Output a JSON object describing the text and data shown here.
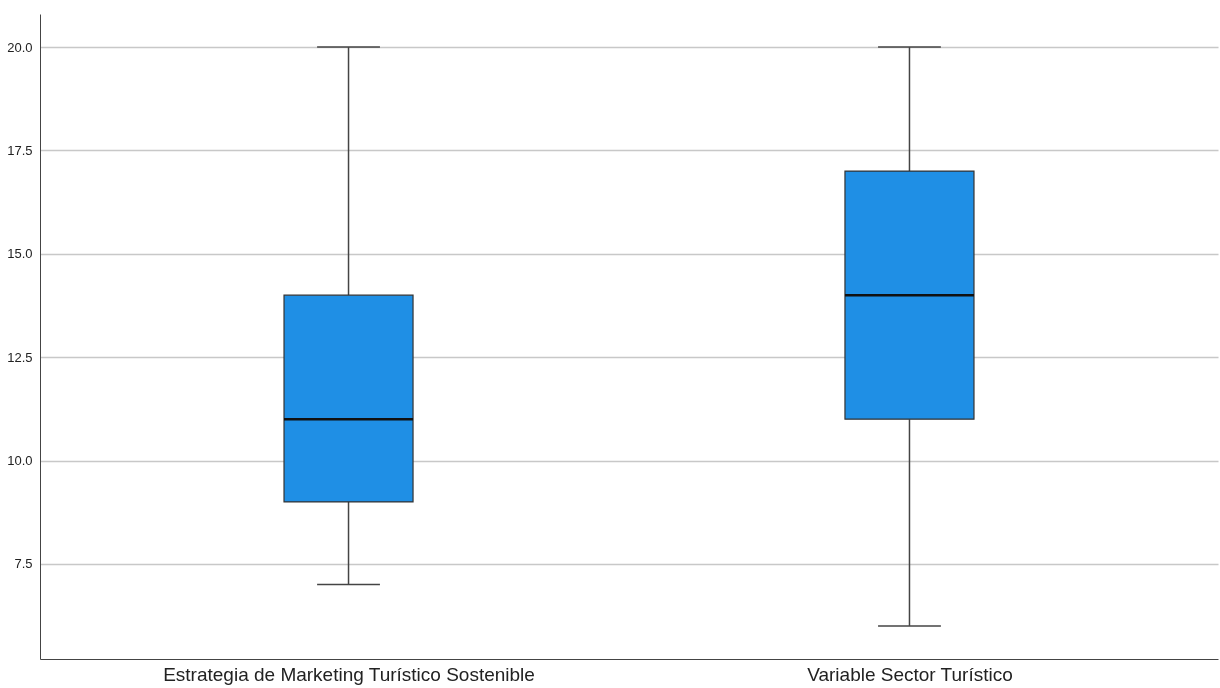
{
  "chart_data": {
    "type": "box",
    "categories": [
      "Estrategia de Marketing Turístico Sostenible",
      "Variable Sector Turístico"
    ],
    "boxes": [
      {
        "low": 7,
        "q1": 9,
        "median": 11,
        "q3": 14,
        "high": 20
      },
      {
        "low": 6,
        "q1": 11,
        "median": 14,
        "q3": 17,
        "high": 20
      }
    ],
    "color": "#1f8fe5",
    "ylim": [
      5.2,
      20.8
    ],
    "yticks": [
      {
        "value": 7.5,
        "label": "7.5"
      },
      {
        "value": 10,
        "label": "10.0"
      },
      {
        "value": 12.5,
        "label": "12.5"
      },
      {
        "value": 15,
        "label": "15.0"
      },
      {
        "value": 17.5,
        "label": "17.5"
      },
      {
        "value": 20,
        "label": "20.0"
      }
    ],
    "grid": "y"
  }
}
